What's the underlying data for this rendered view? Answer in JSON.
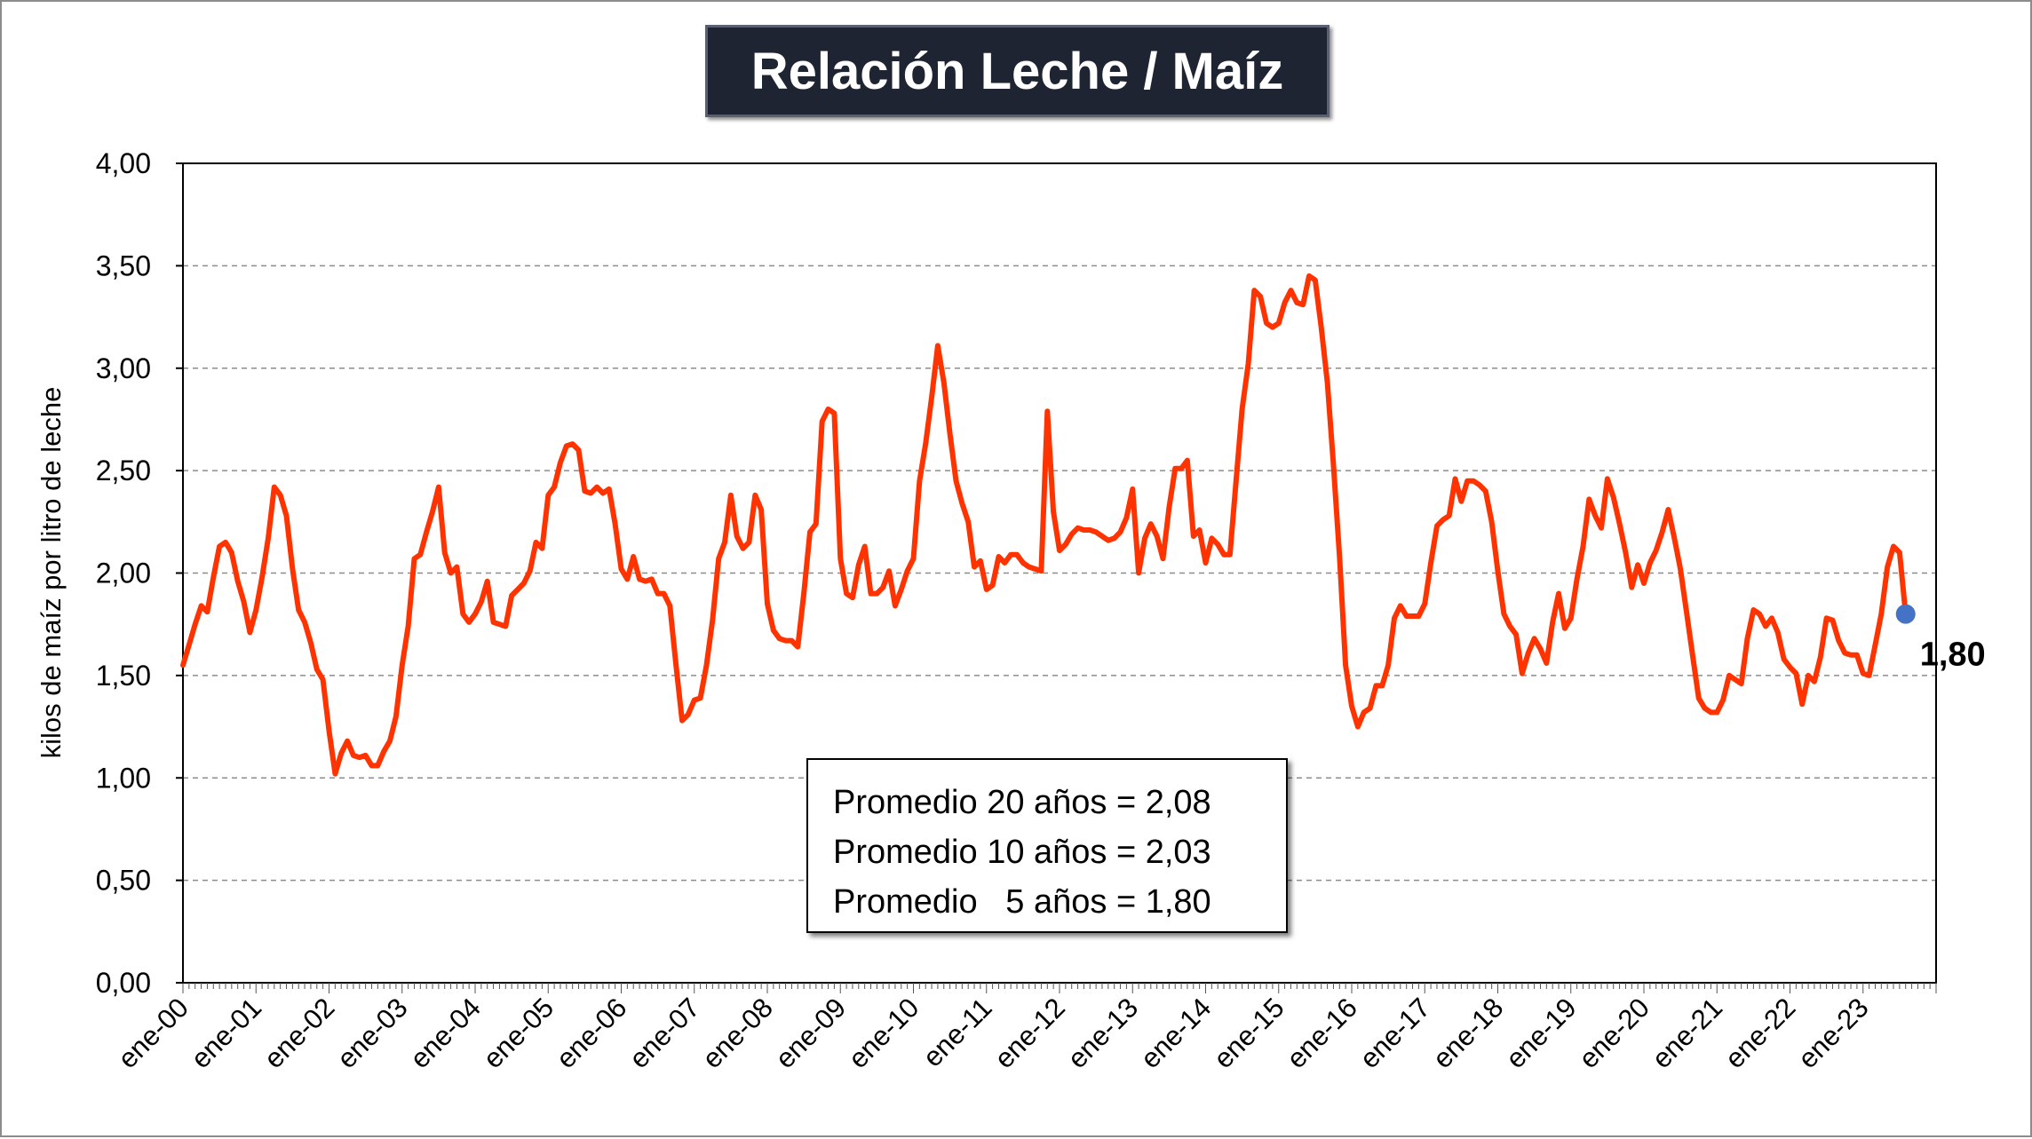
{
  "chart_data": {
    "type": "line",
    "title": "Relación Leche / Maíz",
    "ylabel": "kilos de maíz por litro de leche",
    "xlabel": "",
    "ylim": [
      0,
      4
    ],
    "y_ticks": [
      "0,00",
      "0,50",
      "1,00",
      "1,50",
      "2,00",
      "2,50",
      "3,00",
      "3,50",
      "4,00"
    ],
    "x_ticks": [
      "ene-00",
      "ene-01",
      "ene-02",
      "ene-03",
      "ene-04",
      "ene-05",
      "ene-06",
      "ene-07",
      "ene-08",
      "ene-09",
      "ene-10",
      "ene-11",
      "ene-12",
      "ene-13",
      "ene-14",
      "ene-15",
      "ene-16",
      "ene-17",
      "ene-18",
      "ene-19",
      "ene-20",
      "ene-21",
      "ene-22",
      "ene-23"
    ],
    "grid": "horizontal dashed",
    "line_color": "#ff3300",
    "marker_color": "#4472c4",
    "x_unit": "months since ene-00",
    "series": [
      {
        "points": [
          [
            0,
            1.55
          ],
          [
            1,
            1.65
          ],
          [
            2,
            1.75
          ],
          [
            3,
            1.84
          ],
          [
            4,
            1.81
          ],
          [
            5,
            1.98
          ],
          [
            6,
            2.13
          ],
          [
            7,
            2.15
          ],
          [
            8,
            2.1
          ],
          [
            9,
            1.96
          ],
          [
            10,
            1.86
          ],
          [
            11,
            1.71
          ],
          [
            12,
            1.82
          ],
          [
            13,
            1.98
          ],
          [
            14,
            2.17
          ],
          [
            15,
            2.42
          ],
          [
            16,
            2.38
          ],
          [
            17,
            2.28
          ],
          [
            18,
            2.02
          ],
          [
            19,
            1.82
          ],
          [
            20,
            1.76
          ],
          [
            21,
            1.66
          ],
          [
            22,
            1.53
          ],
          [
            23,
            1.48
          ],
          [
            24,
            1.23
          ],
          [
            25,
            1.02
          ],
          [
            26,
            1.12
          ],
          [
            27,
            1.18
          ],
          [
            28,
            1.11
          ],
          [
            29,
            1.1
          ],
          [
            30,
            1.11
          ],
          [
            31,
            1.06
          ],
          [
            32,
            1.06
          ],
          [
            33,
            1.13
          ],
          [
            34,
            1.18
          ],
          [
            35,
            1.3
          ],
          [
            36,
            1.55
          ],
          [
            37,
            1.74
          ],
          [
            38,
            2.07
          ],
          [
            39,
            2.09
          ],
          [
            40,
            2.2
          ],
          [
            41,
            2.3
          ],
          [
            42,
            2.42
          ],
          [
            43,
            2.1
          ],
          [
            44,
            2.0
          ],
          [
            45,
            2.03
          ],
          [
            46,
            1.8
          ],
          [
            47,
            1.76
          ],
          [
            48,
            1.8
          ],
          [
            49,
            1.86
          ],
          [
            50,
            1.96
          ],
          [
            51,
            1.76
          ],
          [
            52,
            1.75
          ],
          [
            53,
            1.74
          ],
          [
            54,
            1.89
          ],
          [
            55,
            1.92
          ],
          [
            56,
            1.95
          ],
          [
            57,
            2.01
          ],
          [
            58,
            2.15
          ],
          [
            59,
            2.12
          ],
          [
            60,
            2.38
          ],
          [
            61,
            2.42
          ],
          [
            62,
            2.54
          ],
          [
            63,
            2.62
          ],
          [
            64,
            2.63
          ],
          [
            65,
            2.6
          ],
          [
            66,
            2.4
          ],
          [
            67,
            2.39
          ],
          [
            68,
            2.42
          ],
          [
            69,
            2.39
          ],
          [
            70,
            2.41
          ],
          [
            71,
            2.24
          ],
          [
            72,
            2.02
          ],
          [
            73,
            1.97
          ],
          [
            74,
            2.08
          ],
          [
            75,
            1.97
          ],
          [
            76,
            1.96
          ],
          [
            77,
            1.97
          ],
          [
            78,
            1.9
          ],
          [
            79,
            1.9
          ],
          [
            80,
            1.84
          ],
          [
            81,
            1.55
          ],
          [
            82,
            1.28
          ],
          [
            83,
            1.31
          ],
          [
            84,
            1.38
          ],
          [
            85,
            1.39
          ],
          [
            86,
            1.55
          ],
          [
            87,
            1.77
          ],
          [
            88,
            2.07
          ],
          [
            89,
            2.15
          ],
          [
            90,
            2.38
          ],
          [
            91,
            2.18
          ],
          [
            92,
            2.12
          ],
          [
            93,
            2.15
          ],
          [
            94,
            2.38
          ],
          [
            95,
            2.31
          ],
          [
            96,
            1.85
          ],
          [
            97,
            1.72
          ],
          [
            98,
            1.68
          ],
          [
            99,
            1.67
          ],
          [
            100,
            1.67
          ],
          [
            101,
            1.64
          ],
          [
            102,
            1.9
          ],
          [
            103,
            2.2
          ],
          [
            104,
            2.24
          ],
          [
            105,
            2.74
          ],
          [
            106,
            2.8
          ],
          [
            107,
            2.78
          ],
          [
            108,
            2.07
          ],
          [
            109,
            1.9
          ],
          [
            110,
            1.88
          ],
          [
            111,
            2.04
          ],
          [
            112,
            2.13
          ],
          [
            113,
            1.9
          ],
          [
            114,
            1.9
          ],
          [
            115,
            1.93
          ],
          [
            116,
            2.01
          ],
          [
            117,
            1.84
          ],
          [
            118,
            1.92
          ],
          [
            119,
            2.01
          ],
          [
            120,
            2.07
          ],
          [
            121,
            2.45
          ],
          [
            122,
            2.63
          ],
          [
            123,
            2.86
          ],
          [
            124,
            3.11
          ],
          [
            125,
            2.93
          ],
          [
            126,
            2.68
          ],
          [
            127,
            2.45
          ],
          [
            128,
            2.34
          ],
          [
            129,
            2.25
          ],
          [
            130,
            2.03
          ],
          [
            131,
            2.06
          ],
          [
            132,
            1.92
          ],
          [
            133,
            1.94
          ],
          [
            134,
            2.08
          ],
          [
            135,
            2.05
          ],
          [
            136,
            2.09
          ],
          [
            137,
            2.09
          ],
          [
            138,
            2.05
          ],
          [
            139,
            2.03
          ],
          [
            140,
            2.02
          ],
          [
            141,
            2.01
          ],
          [
            142,
            2.79
          ],
          [
            143,
            2.3
          ],
          [
            144,
            2.11
          ],
          [
            145,
            2.14
          ],
          [
            146,
            2.19
          ],
          [
            147,
            2.22
          ],
          [
            148,
            2.21
          ],
          [
            149,
            2.21
          ],
          [
            150,
            2.2
          ],
          [
            151,
            2.18
          ],
          [
            152,
            2.16
          ],
          [
            153,
            2.17
          ],
          [
            154,
            2.2
          ],
          [
            155,
            2.27
          ],
          [
            156,
            2.41
          ],
          [
            157,
            2.0
          ],
          [
            158,
            2.17
          ],
          [
            159,
            2.24
          ],
          [
            160,
            2.18
          ],
          [
            161,
            2.07
          ],
          [
            162,
            2.32
          ],
          [
            163,
            2.51
          ],
          [
            164,
            2.51
          ],
          [
            165,
            2.55
          ],
          [
            166,
            2.18
          ],
          [
            167,
            2.21
          ],
          [
            168,
            2.05
          ],
          [
            169,
            2.17
          ],
          [
            170,
            2.14
          ],
          [
            171,
            2.09
          ],
          [
            172,
            2.09
          ],
          [
            173,
            2.45
          ],
          [
            174,
            2.8
          ],
          [
            175,
            3.02
          ],
          [
            176,
            3.38
          ],
          [
            177,
            3.35
          ],
          [
            178,
            3.22
          ],
          [
            179,
            3.2
          ],
          [
            180,
            3.22
          ],
          [
            181,
            3.32
          ],
          [
            182,
            3.38
          ],
          [
            183,
            3.32
          ],
          [
            184,
            3.31
          ],
          [
            185,
            3.45
          ],
          [
            186,
            3.43
          ],
          [
            187,
            3.2
          ],
          [
            188,
            2.93
          ],
          [
            189,
            2.53
          ],
          [
            190,
            2.08
          ],
          [
            191,
            1.55
          ],
          [
            192,
            1.35
          ],
          [
            193,
            1.25
          ],
          [
            194,
            1.32
          ],
          [
            195,
            1.34
          ],
          [
            196,
            1.45
          ],
          [
            197,
            1.45
          ],
          [
            198,
            1.55
          ],
          [
            199,
            1.78
          ],
          [
            200,
            1.84
          ],
          [
            201,
            1.79
          ],
          [
            202,
            1.79
          ],
          [
            203,
            1.79
          ],
          [
            204,
            1.85
          ],
          [
            205,
            2.05
          ],
          [
            206,
            2.23
          ],
          [
            207,
            2.26
          ],
          [
            208,
            2.28
          ],
          [
            209,
            2.46
          ],
          [
            210,
            2.35
          ],
          [
            211,
            2.45
          ],
          [
            212,
            2.45
          ],
          [
            213,
            2.43
          ],
          [
            214,
            2.4
          ],
          [
            215,
            2.25
          ],
          [
            216,
            2.01
          ],
          [
            217,
            1.8
          ],
          [
            218,
            1.74
          ],
          [
            219,
            1.7
          ],
          [
            220,
            1.51
          ],
          [
            221,
            1.61
          ],
          [
            222,
            1.68
          ],
          [
            223,
            1.63
          ],
          [
            224,
            1.56
          ],
          [
            225,
            1.76
          ],
          [
            226,
            1.9
          ],
          [
            227,
            1.73
          ],
          [
            228,
            1.78
          ],
          [
            229,
            1.97
          ],
          [
            230,
            2.13
          ],
          [
            231,
            2.36
          ],
          [
            232,
            2.28
          ],
          [
            233,
            2.22
          ],
          [
            234,
            2.46
          ],
          [
            235,
            2.37
          ],
          [
            236,
            2.24
          ],
          [
            237,
            2.1
          ],
          [
            238,
            1.93
          ],
          [
            239,
            2.04
          ],
          [
            240,
            1.95
          ],
          [
            241,
            2.05
          ],
          [
            242,
            2.11
          ],
          [
            243,
            2.2
          ],
          [
            244,
            2.31
          ],
          [
            245,
            2.17
          ],
          [
            246,
            2.02
          ],
          [
            247,
            1.81
          ],
          [
            248,
            1.6
          ],
          [
            249,
            1.39
          ],
          [
            250,
            1.34
          ],
          [
            251,
            1.32
          ],
          [
            252,
            1.32
          ],
          [
            253,
            1.38
          ],
          [
            254,
            1.5
          ],
          [
            255,
            1.48
          ],
          [
            256,
            1.46
          ],
          [
            257,
            1.68
          ],
          [
            258,
            1.82
          ],
          [
            259,
            1.8
          ],
          [
            260,
            1.74
          ],
          [
            261,
            1.78
          ],
          [
            262,
            1.71
          ],
          [
            263,
            1.58
          ],
          [
            264,
            1.54
          ],
          [
            265,
            1.51
          ],
          [
            266,
            1.36
          ],
          [
            267,
            1.5
          ],
          [
            268,
            1.47
          ],
          [
            269,
            1.59
          ],
          [
            270,
            1.78
          ],
          [
            271,
            1.77
          ],
          [
            272,
            1.67
          ],
          [
            273,
            1.61
          ],
          [
            274,
            1.6
          ],
          [
            275,
            1.6
          ],
          [
            276,
            1.51
          ],
          [
            277,
            1.5
          ],
          [
            278,
            1.65
          ],
          [
            279,
            1.8
          ],
          [
            280,
            2.03
          ],
          [
            281,
            2.13
          ],
          [
            282,
            2.1
          ],
          [
            283,
            1.8
          ]
        ]
      }
    ],
    "annotations": {
      "last_value": "1,80",
      "stats": [
        "Promedio 20 años = 2,08",
        "Promedio 10 años = 2,03",
        "Promedio   5 años = 1,80"
      ]
    }
  }
}
